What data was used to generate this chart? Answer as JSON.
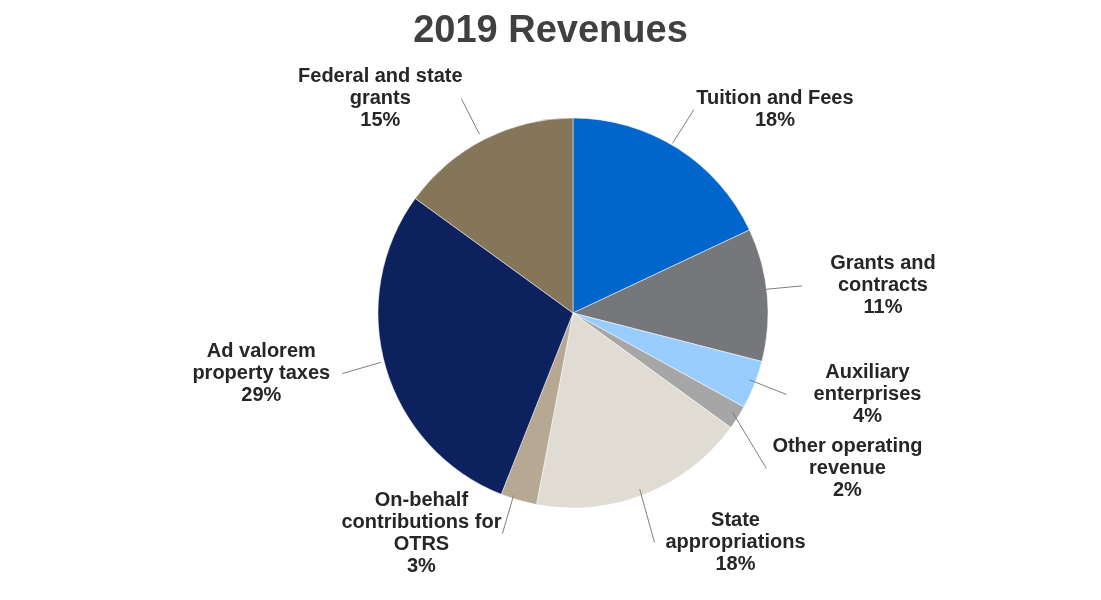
{
  "chart_data": {
    "type": "pie",
    "title": "2019 Revenues",
    "categories": [
      "Tuition and Fees",
      "Grants and contracts",
      "Auxiliary enterprises",
      "Other operating revenue",
      "State appropriations",
      "On-behalf contributions for OTRS",
      "Ad valorem property taxes",
      "Federal and state grants"
    ],
    "values": [
      18,
      11,
      4,
      2,
      18,
      3,
      29,
      15
    ],
    "value_labels": [
      "18%",
      "11%",
      "4%",
      "2%",
      "18%",
      "3%",
      "29%",
      "15%"
    ],
    "colors": [
      "#0066cc",
      "#76777b",
      "#99ccff",
      "#a6a6a6",
      "#e0dcd3",
      "#b7a893",
      "#0c215e",
      "#85765a"
    ]
  }
}
